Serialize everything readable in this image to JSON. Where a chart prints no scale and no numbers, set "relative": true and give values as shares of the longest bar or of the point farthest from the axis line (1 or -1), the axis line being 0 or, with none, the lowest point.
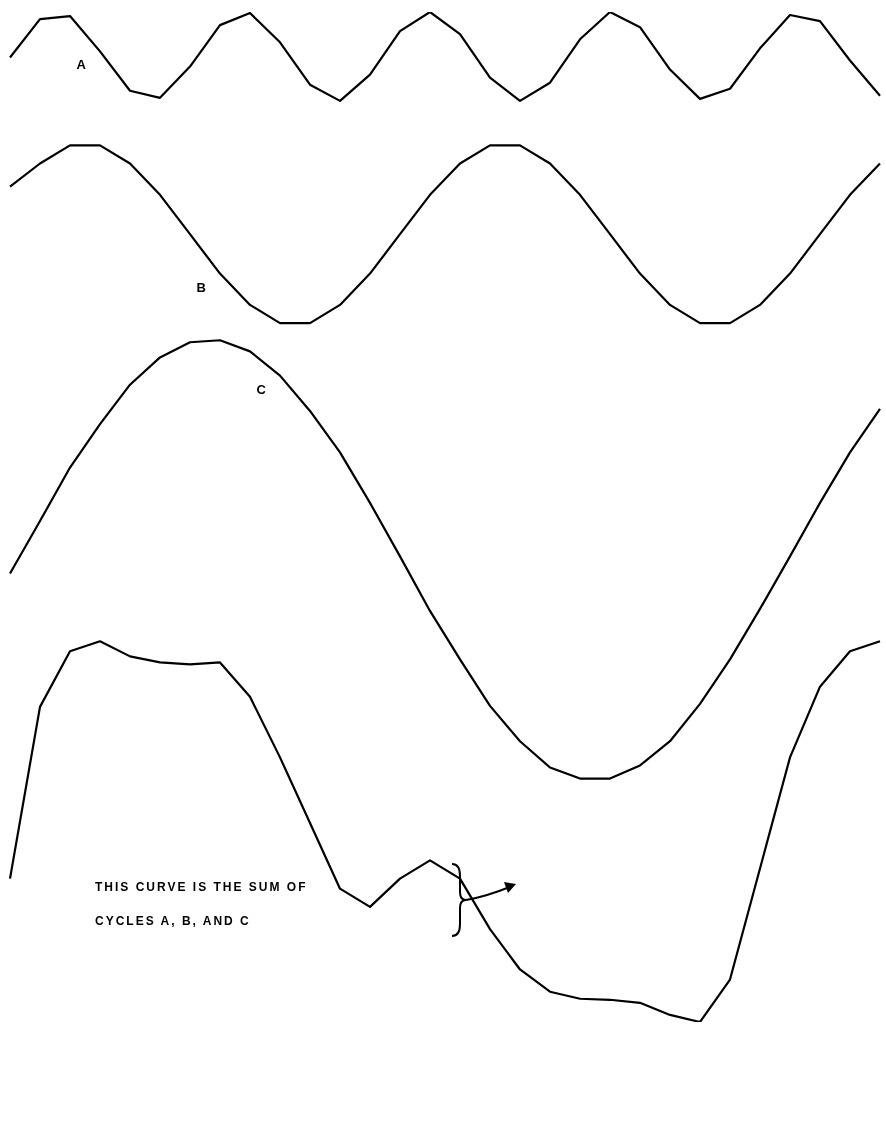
{
  "chart_data": {
    "type": "line",
    "relative": true,
    "legend": false,
    "marker": "none",
    "line_style": "solid",
    "categories": [
      null,
      null,
      null,
      null,
      null,
      null,
      null,
      null,
      null,
      null,
      null,
      null,
      null,
      null,
      null,
      null,
      null,
      null,
      null,
      null,
      null,
      null,
      null,
      null,
      null,
      null,
      null,
      null,
      null,
      null
    ],
    "series": [
      {
        "name": "A",
        "color": "#000000",
        "values": [
          0.955,
          0.993,
          0.996,
          0.961,
          0.922,
          0.915,
          0.946,
          0.987,
          0.999,
          0.97,
          0.928,
          0.912,
          0.938,
          0.981,
          1.0,
          0.978,
          0.935,
          0.912,
          0.93,
          0.973,
          1.0,
          0.985,
          0.943,
          0.914,
          0.924,
          0.964,
          0.997,
          0.991,
          0.952,
          0.917
        ]
      },
      {
        "name": "B",
        "color": "#000000",
        "values": [
          0.827,
          0.85,
          0.868,
          0.868,
          0.85,
          0.819,
          0.78,
          0.741,
          0.71,
          0.692,
          0.692,
          0.71,
          0.741,
          0.78,
          0.819,
          0.85,
          0.868,
          0.868,
          0.85,
          0.819,
          0.78,
          0.741,
          0.71,
          0.692,
          0.692,
          0.71,
          0.741,
          0.78,
          0.819,
          0.85
        ]
      },
      {
        "name": "C",
        "color": "#000000",
        "values": [
          0.444,
          0.496,
          0.549,
          0.592,
          0.631,
          0.658,
          0.673,
          0.675,
          0.664,
          0.64,
          0.605,
          0.564,
          0.514,
          0.461,
          0.407,
          0.359,
          0.313,
          0.278,
          0.252,
          0.241,
          0.241,
          0.254,
          0.278,
          0.315,
          0.359,
          0.409,
          0.461,
          0.514,
          0.564,
          0.607
        ]
      },
      {
        "color": "#000000",
        "values": [
          0.142,
          0.312,
          0.367,
          0.377,
          0.362,
          0.356,
          0.354,
          0.356,
          0.322,
          0.262,
          0.197,
          0.132,
          0.114,
          0.142,
          0.16,
          0.142,
          0.092,
          0.052,
          0.03,
          0.023,
          0.022,
          0.019,
          0.007,
          0,
          0.042,
          0.152,
          0.262,
          0.332,
          0.367,
          0.377
        ]
      }
    ],
    "annotations": [
      "THIS CURVE IS THE SUM OF CYCLES A, B, AND C"
    ]
  }
}
